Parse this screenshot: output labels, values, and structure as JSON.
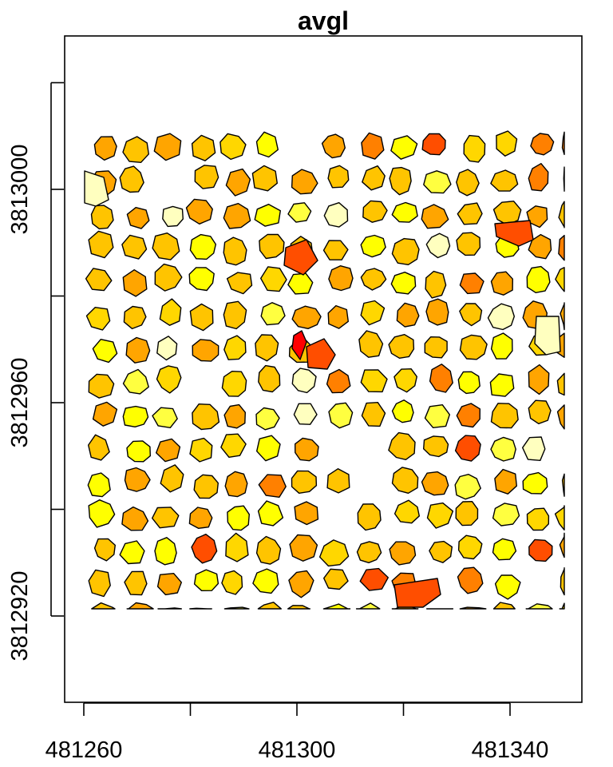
{
  "chart_data": {
    "type": "choropleth-polygons",
    "title": "avgl",
    "xlabel": "",
    "ylabel": "",
    "x_ticks": [
      481260,
      481300,
      481340
    ],
    "y_ticks": [
      3812920,
      3812960,
      3813000
    ],
    "x_tick_labels": [
      "481260",
      "481300",
      "481340"
    ],
    "y_tick_labels": [
      "3812920",
      "3812960",
      "3813000"
    ],
    "xlim": [
      481256.4,
      481350.0
    ],
    "ylim": [
      3812898.2,
      3813040.0
    ],
    "palette": [
      "#FF0000",
      "#FF4E00",
      "#FF8000",
      "#FFA500",
      "#FFC400",
      "#FFD700",
      "#FFFF00",
      "#FFFF40",
      "#FFFFBF"
    ],
    "grid": false,
    "legend": "none"
  }
}
